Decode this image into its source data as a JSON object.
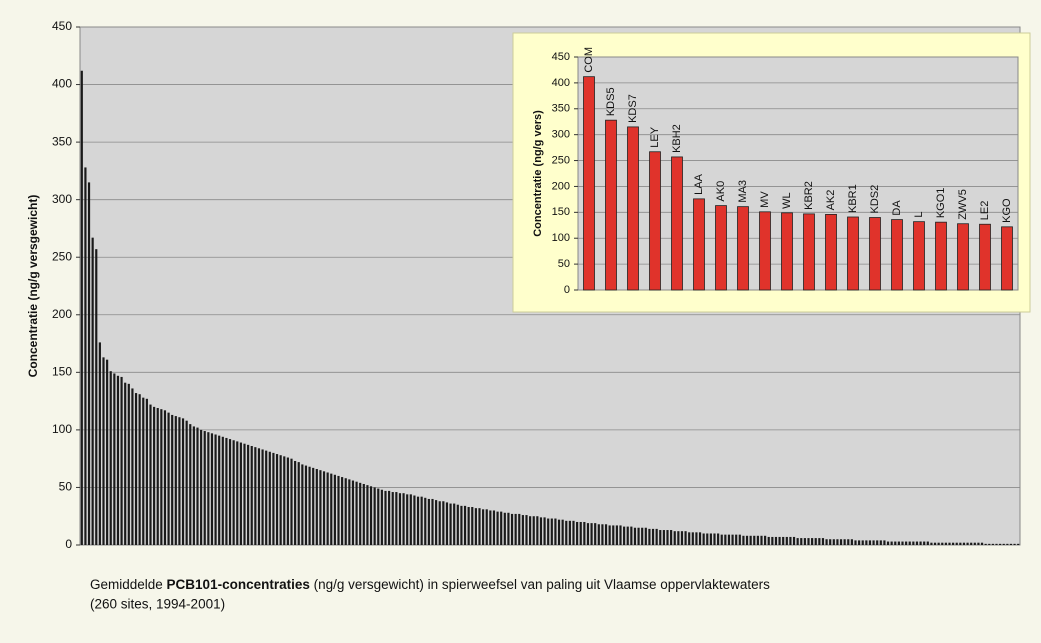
{
  "chart_data": [
    {
      "type": "bar",
      "ylabel": "Concentratie (ng/g versgewicht)",
      "ylim": [
        0,
        450
      ],
      "yticks": [
        0,
        50,
        100,
        150,
        200,
        250,
        300,
        350,
        400,
        450
      ],
      "grid": true,
      "color": "#1a1a1a",
      "values": [
        412,
        328,
        315,
        267,
        257,
        176,
        163,
        161,
        151,
        149,
        147,
        146,
        141,
        140,
        136,
        132,
        131,
        128,
        127,
        122,
        120,
        119,
        118,
        117,
        115,
        113,
        112,
        111,
        110,
        108,
        105,
        103,
        102,
        100,
        99,
        98,
        97,
        96,
        95,
        94,
        93,
        92,
        91,
        90,
        89,
        88,
        87,
        86,
        85,
        84,
        83,
        82,
        81,
        80,
        79,
        78,
        77,
        76,
        75,
        73,
        72,
        70,
        69,
        68,
        67,
        66,
        65,
        64,
        63,
        62,
        61,
        60,
        59,
        58,
        57,
        56,
        55,
        54,
        53,
        52,
        51,
        50,
        49,
        48,
        47,
        47,
        46,
        46,
        45,
        45,
        44,
        44,
        43,
        42,
        42,
        41,
        40,
        40,
        39,
        38,
        38,
        37,
        36,
        36,
        35,
        34,
        34,
        33,
        33,
        32,
        32,
        31,
        31,
        30,
        30,
        29,
        29,
        28,
        28,
        27,
        27,
        27,
        26,
        26,
        25,
        25,
        25,
        24,
        24,
        23,
        23,
        23,
        22,
        22,
        21,
        21,
        21,
        20,
        20,
        20,
        19,
        19,
        19,
        18,
        18,
        18,
        17,
        17,
        17,
        17,
        16,
        16,
        16,
        15,
        15,
        15,
        15,
        14,
        14,
        14,
        13,
        13,
        13,
        13,
        12,
        12,
        12,
        12,
        11,
        11,
        11,
        11,
        10,
        10,
        10,
        10,
        10,
        9,
        9,
        9,
        9,
        9,
        9,
        8,
        8,
        8,
        8,
        8,
        8,
        8,
        7,
        7,
        7,
        7,
        7,
        7,
        7,
        7,
        6,
        6,
        6,
        6,
        6,
        6,
        6,
        6,
        5,
        5,
        5,
        5,
        5,
        5,
        5,
        5,
        4,
        4,
        4,
        4,
        4,
        4,
        4,
        4,
        4,
        3,
        3,
        3,
        3,
        3,
        3,
        3,
        3,
        3,
        3,
        3,
        3,
        2,
        2,
        2,
        2,
        2,
        2,
        2,
        2,
        2,
        2,
        2,
        2,
        2,
        2,
        2,
        1,
        1,
        1,
        1,
        1,
        1,
        1,
        1,
        1,
        1
      ]
    },
    {
      "type": "bar",
      "ylabel": "Concentratie (ng/g vers)",
      "ylim": [
        0,
        450
      ],
      "yticks": [
        0,
        50,
        100,
        150,
        200,
        250,
        300,
        350,
        400,
        450
      ],
      "grid": true,
      "color": "#e0332b",
      "categories": [
        "COM",
        "KDS5",
        "KDS7",
        "LEY",
        "KBH2",
        "LAA",
        "AK0",
        "MA3",
        "MV",
        "WL",
        "KBR2",
        "AK2",
        "KBR1",
        "KDS2",
        "DA",
        "L",
        "KGO1",
        "ZWV5",
        "LE2",
        "KGO"
      ],
      "values": [
        412,
        328,
        315,
        267,
        257,
        176,
        163,
        161,
        151,
        149,
        147,
        146,
        141,
        140,
        136,
        132,
        131,
        128,
        127,
        122
      ]
    }
  ],
  "caption": [
    "Gemiddelde ",
    "PCB101-concentraties",
    " (ng/g versgewicht) in spierweefsel van paling uit Vlaamse oppervlaktewaters",
    "(260 sites, 1994-2001)"
  ]
}
